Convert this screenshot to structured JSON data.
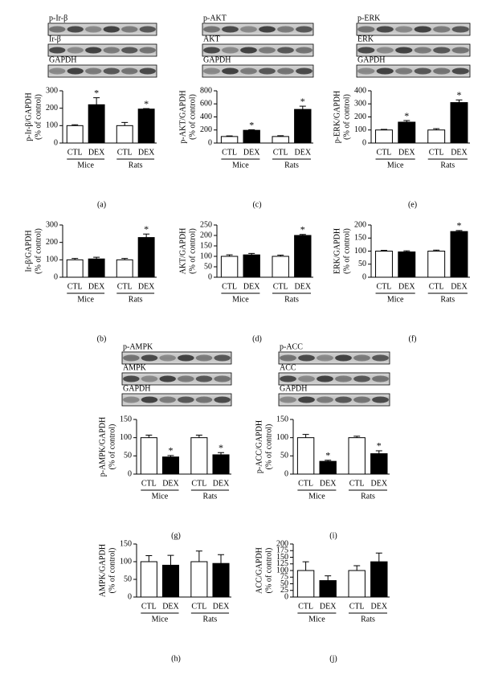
{
  "chart_data": [
    {
      "type": "bar",
      "panel": "(a)",
      "blots": [
        "p-Ir-β",
        "Ir-β",
        "GAPDH"
      ],
      "ylabel": [
        "p-Ir-β/GAPDH",
        "(% of control)"
      ],
      "categories": [
        "CTL",
        "DEX",
        "CTL",
        "DEX"
      ],
      "groups": [
        "Mice",
        "Rats"
      ],
      "values": [
        100,
        220,
        100,
        195
      ],
      "errors": [
        5,
        40,
        18,
        3
      ],
      "colors": [
        "#ffffff",
        "#000000",
        "#ffffff",
        "#000000"
      ],
      "annotations": [
        {
          "index": 1,
          "text": "*"
        },
        {
          "index": 3,
          "text": "*"
        }
      ],
      "ylim": [
        0,
        300
      ],
      "yticks": [
        0,
        100,
        200,
        300
      ]
    },
    {
      "type": "bar",
      "panel": "(b)",
      "ylabel": [
        "Ir-β/GAPDH",
        "(% of control)"
      ],
      "categories": [
        "CTL",
        "DEX",
        "CTL",
        "DEX"
      ],
      "groups": [
        "Mice",
        "Rats"
      ],
      "values": [
        100,
        105,
        100,
        228
      ],
      "errors": [
        8,
        10,
        8,
        20
      ],
      "colors": [
        "#ffffff",
        "#000000",
        "#ffffff",
        "#000000"
      ],
      "annotations": [
        {
          "index": 3,
          "text": "*"
        }
      ],
      "ylim": [
        0,
        300
      ],
      "yticks": [
        0,
        100,
        200,
        300
      ]
    },
    {
      "type": "bar",
      "panel": "(c)",
      "blots": [
        "p-AKT",
        "AKT",
        "GAPDH"
      ],
      "ylabel": [
        "p-AKT/GAPDH",
        "(% of control)"
      ],
      "categories": [
        "CTL",
        "DEX",
        "CTL",
        "DEX"
      ],
      "groups": [
        "Mice",
        "Rats"
      ],
      "values": [
        100,
        195,
        100,
        515
      ],
      "errors": [
        10,
        8,
        12,
        50
      ],
      "colors": [
        "#ffffff",
        "#000000",
        "#ffffff",
        "#000000"
      ],
      "annotations": [
        {
          "index": 1,
          "text": "*"
        },
        {
          "index": 3,
          "text": "*"
        }
      ],
      "ylim": [
        0,
        800
      ],
      "yticks": [
        0,
        200,
        400,
        600,
        800
      ]
    },
    {
      "type": "bar",
      "panel": "(d)",
      "ylabel": [
        "AKT/GAPDH",
        "(% of control)"
      ],
      "categories": [
        "CTL",
        "DEX",
        "CTL",
        "DEX"
      ],
      "groups": [
        "Mice",
        "Rats"
      ],
      "values": [
        100,
        107,
        100,
        200
      ],
      "errors": [
        7,
        7,
        6,
        5
      ],
      "colors": [
        "#ffffff",
        "#000000",
        "#ffffff",
        "#000000"
      ],
      "annotations": [
        {
          "index": 3,
          "text": "*"
        }
      ],
      "ylim": [
        0,
        250
      ],
      "yticks": [
        0,
        50,
        100,
        150,
        200,
        250
      ]
    },
    {
      "type": "bar",
      "panel": "(e)",
      "blots": [
        "p-ERK",
        "ERK",
        "GAPDH"
      ],
      "ylabel": [
        "p-ERK/GAPDH",
        "(% of control)"
      ],
      "categories": [
        "CTL",
        "DEX",
        "CTL",
        "DEX"
      ],
      "groups": [
        "Mice",
        "Rats"
      ],
      "values": [
        100,
        160,
        100,
        310
      ],
      "errors": [
        5,
        12,
        10,
        20
      ],
      "colors": [
        "#ffffff",
        "#000000",
        "#ffffff",
        "#000000"
      ],
      "annotations": [
        {
          "index": 1,
          "text": "*"
        },
        {
          "index": 3,
          "text": "*"
        }
      ],
      "ylim": [
        0,
        400
      ],
      "yticks": [
        0,
        100,
        200,
        300,
        400
      ]
    },
    {
      "type": "bar",
      "panel": "(f)",
      "ylabel": [
        "ERK/GAPDH",
        "(% of control)"
      ],
      "categories": [
        "CTL",
        "DEX",
        "CTL",
        "DEX"
      ],
      "groups": [
        "Mice",
        "Rats"
      ],
      "values": [
        100,
        97,
        100,
        175
      ],
      "errors": [
        3,
        4,
        4,
        4
      ],
      "colors": [
        "#ffffff",
        "#000000",
        "#ffffff",
        "#000000"
      ],
      "annotations": [
        {
          "index": 3,
          "text": "*"
        }
      ],
      "ylim": [
        0,
        200
      ],
      "yticks": [
        0,
        50,
        100,
        150,
        200
      ]
    },
    {
      "type": "bar",
      "panel": "(g)",
      "blots": [
        "p-AMPK",
        "AMPK",
        "GAPDH"
      ],
      "ylabel": [
        "p-AMPK/GAPDH",
        "(% of control)"
      ],
      "categories": [
        "CTL",
        "DEX",
        "CTL",
        "DEX"
      ],
      "groups": [
        "Mice",
        "Rats"
      ],
      "values": [
        100,
        47,
        100,
        53
      ],
      "errors": [
        7,
        4,
        7,
        6
      ],
      "colors": [
        "#ffffff",
        "#000000",
        "#ffffff",
        "#000000"
      ],
      "annotations": [
        {
          "index": 1,
          "text": "*"
        },
        {
          "index": 3,
          "text": "*"
        }
      ],
      "ylim": [
        0,
        150
      ],
      "yticks": [
        0,
        50,
        100,
        150
      ]
    },
    {
      "type": "bar",
      "panel": "(h)",
      "ylabel": [
        "AMPK/GAPDH",
        "(% of control)"
      ],
      "categories": [
        "CTL",
        "DEX",
        "CTL",
        "DEX"
      ],
      "groups": [
        "Mice",
        "Rats"
      ],
      "values": [
        100,
        90,
        100,
        95
      ],
      "errors": [
        17,
        28,
        30,
        25
      ],
      "colors": [
        "#ffffff",
        "#000000",
        "#ffffff",
        "#000000"
      ],
      "annotations": [],
      "ylim": [
        0,
        150
      ],
      "yticks": [
        0,
        50,
        100,
        150
      ]
    },
    {
      "type": "bar",
      "panel": "(i)",
      "blots": [
        "p-ACC",
        "ACC",
        "GAPDH"
      ],
      "ylabel": [
        "p-ACC/GAPDH",
        "(% of control)"
      ],
      "categories": [
        "CTL",
        "DEX",
        "CTL",
        "DEX"
      ],
      "groups": [
        "Mice",
        "Rats"
      ],
      "values": [
        100,
        35,
        100,
        56
      ],
      "errors": [
        9,
        3,
        4,
        8
      ],
      "colors": [
        "#ffffff",
        "#000000",
        "#ffffff",
        "#000000"
      ],
      "annotations": [
        {
          "index": 1,
          "text": "*"
        },
        {
          "index": 3,
          "text": "*"
        }
      ],
      "ylim": [
        0,
        150
      ],
      "yticks": [
        0,
        50,
        100,
        150
      ]
    },
    {
      "type": "bar",
      "panel": "(j)",
      "ylabel": [
        "ACC/GAPDH",
        "(% of control)"
      ],
      "categories": [
        "CTL",
        "DEX",
        "CTL",
        "DEX"
      ],
      "groups": [
        "Mice",
        "Rats"
      ],
      "values": [
        100,
        62,
        100,
        133
      ],
      "errors": [
        33,
        18,
        18,
        33
      ],
      "colors": [
        "#ffffff",
        "#000000",
        "#ffffff",
        "#000000"
      ],
      "annotations": [],
      "ylim": [
        0,
        200
      ],
      "yticks": [
        0,
        25,
        50,
        75,
        100,
        125,
        150,
        175,
        200
      ]
    }
  ]
}
